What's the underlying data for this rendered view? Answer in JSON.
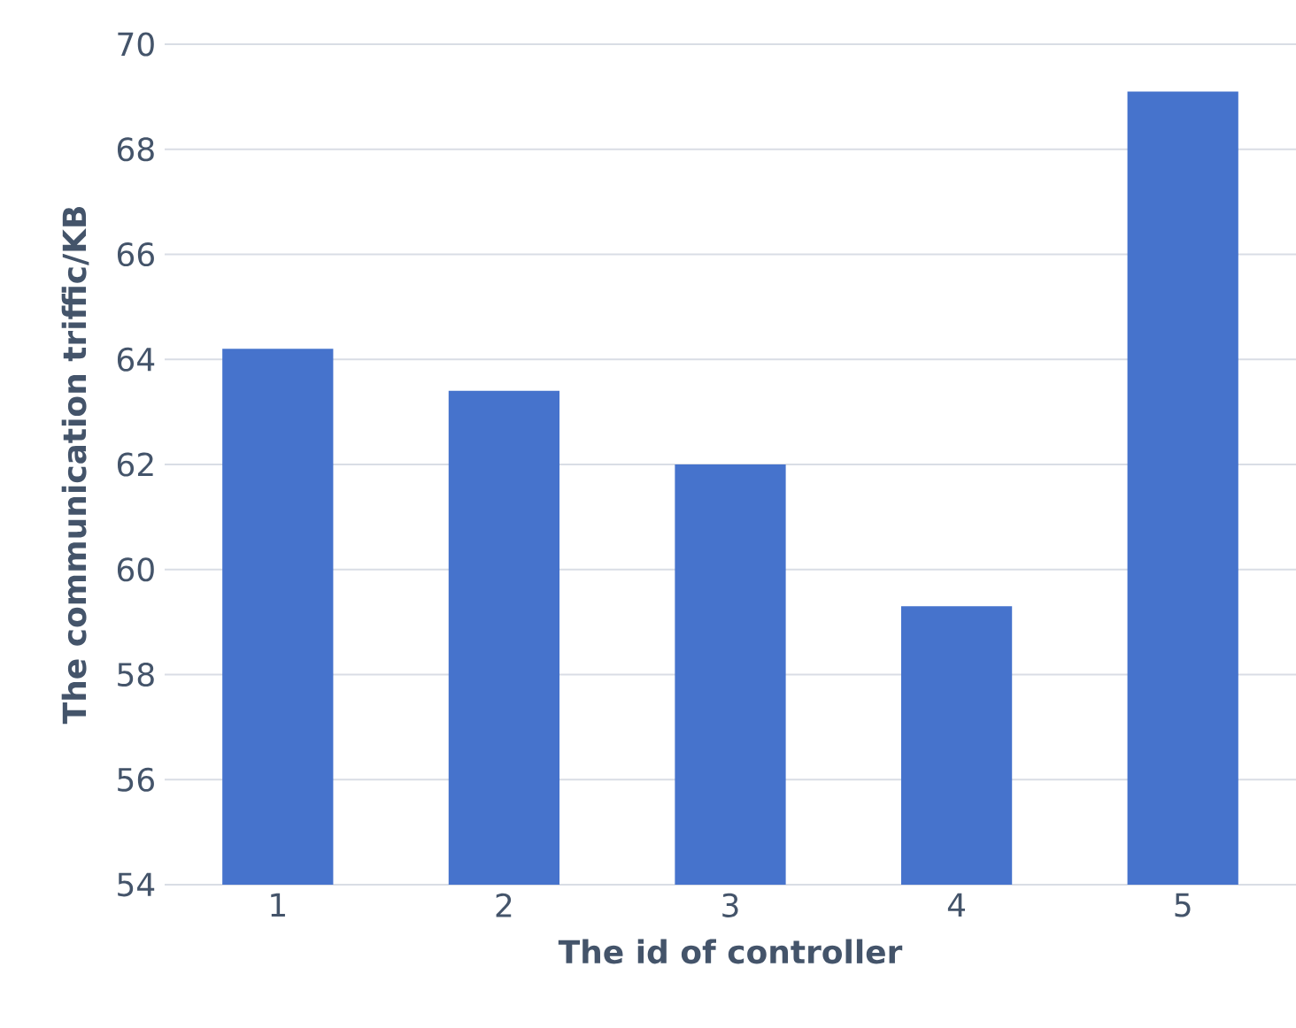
{
  "chart_data": {
    "type": "bar",
    "xlabel": "The id of controller",
    "ylabel": "The communication triffic/KB",
    "categories": [
      "1",
      "2",
      "3",
      "4",
      "5"
    ],
    "values": [
      64.2,
      63.4,
      62.0,
      59.3,
      69.1
    ],
    "color": "#4673cc",
    "ylim": [
      54,
      70
    ],
    "yticks": [
      54,
      56,
      58,
      60,
      62,
      64,
      66,
      68,
      70
    ],
    "grid": "y"
  }
}
